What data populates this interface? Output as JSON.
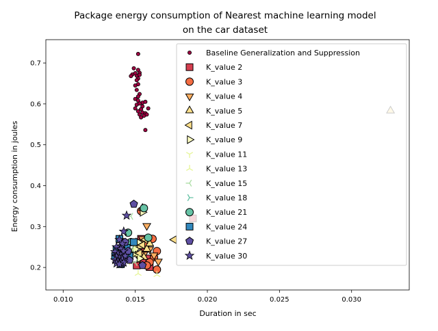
{
  "chart_data": {
    "type": "scatter",
    "title_lines": [
      "Package energy consumption of Nearest machine learning model",
      "on the car dataset"
    ],
    "xlabel": "Duration in sec",
    "ylabel": "Energy consumption in joules",
    "xlim": [
      0.0088,
      0.034
    ],
    "ylim": [
      0.145,
      0.757
    ],
    "xticks": [
      0.01,
      0.015,
      0.02,
      0.025,
      0.03
    ],
    "xtick_labels": [
      "0.010",
      "0.015",
      "0.020",
      "0.025",
      "0.030"
    ],
    "yticks": [
      0.2,
      0.3,
      0.4,
      0.5,
      0.6,
      0.7
    ],
    "ytick_labels": [
      "0.2",
      "0.3",
      "0.4",
      "0.5",
      "0.6",
      "0.7"
    ],
    "grid": false,
    "legend_position": "upper right",
    "series": [
      {
        "name": "Baseline Generalization and Suppression",
        "marker": "dot",
        "color": "#9e0142",
        "points": [
          [
            0.0152,
            0.722
          ],
          [
            0.0149,
            0.687
          ],
          [
            0.0152,
            0.683
          ],
          [
            0.0148,
            0.672
          ],
          [
            0.0153,
            0.676
          ],
          [
            0.0151,
            0.669
          ],
          [
            0.015,
            0.675
          ],
          [
            0.0147,
            0.668
          ],
          [
            0.0152,
            0.662
          ],
          [
            0.0153,
            0.671
          ],
          [
            0.0151,
            0.658
          ],
          [
            0.0152,
            0.648
          ],
          [
            0.015,
            0.645
          ],
          [
            0.0151,
            0.634
          ],
          [
            0.0153,
            0.624
          ],
          [
            0.0152,
            0.618
          ],
          [
            0.015,
            0.612
          ],
          [
            0.0152,
            0.608
          ],
          [
            0.0155,
            0.603
          ],
          [
            0.0157,
            0.605
          ],
          [
            0.0151,
            0.598
          ],
          [
            0.0153,
            0.601
          ],
          [
            0.0155,
            0.594
          ],
          [
            0.015,
            0.589
          ],
          [
            0.0154,
            0.587
          ],
          [
            0.0159,
            0.589
          ],
          [
            0.0152,
            0.582
          ],
          [
            0.0155,
            0.579
          ],
          [
            0.0157,
            0.577
          ],
          [
            0.0153,
            0.574
          ],
          [
            0.0156,
            0.571
          ],
          [
            0.0158,
            0.574
          ],
          [
            0.0154,
            0.567
          ],
          [
            0.0157,
            0.536
          ]
        ]
      },
      {
        "name": "K_value 2",
        "marker": "square",
        "color": "#d53e4f",
        "points": [
          [
            0.0154,
            0.27
          ],
          [
            0.0152,
            0.258
          ],
          [
            0.0156,
            0.245
          ],
          [
            0.0153,
            0.232
          ],
          [
            0.0158,
            0.222
          ],
          [
            0.0155,
            0.212
          ],
          [
            0.0151,
            0.205
          ],
          [
            0.016,
            0.201
          ],
          [
            0.019,
            0.32
          ]
        ]
      },
      {
        "name": "K_value 3",
        "marker": "circle",
        "color": "#f46d43",
        "points": [
          [
            0.0154,
            0.338
          ],
          [
            0.0163,
            0.225
          ],
          [
            0.0165,
            0.24
          ],
          [
            0.016,
            0.213
          ],
          [
            0.0158,
            0.205
          ],
          [
            0.0165,
            0.195
          ],
          [
            0.0155,
            0.265
          ],
          [
            0.0157,
            0.255
          ],
          [
            0.0162,
            0.27
          ]
        ]
      },
      {
        "name": "K_value 4",
        "marker": "triangle-down",
        "color": "#fdae61",
        "points": [
          [
            0.0158,
            0.302
          ],
          [
            0.0155,
            0.27
          ],
          [
            0.0152,
            0.258
          ],
          [
            0.016,
            0.245
          ],
          [
            0.0163,
            0.23
          ],
          [
            0.0166,
            0.215
          ],
          [
            0.0156,
            0.232
          ],
          [
            0.0153,
            0.222
          ]
        ]
      },
      {
        "name": "K_value 5",
        "marker": "triangle-up",
        "color": "#fee08b",
        "points": [
          [
            0.0155,
            0.345
          ],
          [
            0.0153,
            0.252
          ],
          [
            0.0158,
            0.245
          ],
          [
            0.016,
            0.258
          ],
          [
            0.015,
            0.232
          ],
          [
            0.0156,
            0.225
          ],
          [
            0.0327,
            0.583
          ]
        ]
      },
      {
        "name": "K_value 7",
        "marker": "triangle-left",
        "color": "#fee08b",
        "points": [
          [
            0.0177,
            0.268
          ],
          [
            0.0157,
            0.268
          ],
          [
            0.0155,
            0.255
          ],
          [
            0.015,
            0.245
          ],
          [
            0.0153,
            0.235
          ]
        ]
      },
      {
        "name": "K_value 9",
        "marker": "triangle-right",
        "color": "#ffffbf",
        "points": [
          [
            0.0155,
            0.335
          ],
          [
            0.0152,
            0.262
          ],
          [
            0.015,
            0.245
          ],
          [
            0.0148,
            0.232
          ],
          [
            0.0153,
            0.222
          ]
        ]
      },
      {
        "name": "K_value 11",
        "marker": "tri-down",
        "color": "#e6f598",
        "points": [
          [
            0.015,
            0.255
          ],
          [
            0.0148,
            0.242
          ],
          [
            0.0152,
            0.228
          ],
          [
            0.0146,
            0.215
          ]
        ]
      },
      {
        "name": "K_value 13",
        "marker": "tri-up",
        "color": "#e6f598",
        "points": [
          [
            0.0152,
            0.185
          ],
          [
            0.0165,
            0.182
          ],
          [
            0.0149,
            0.245
          ],
          [
            0.0147,
            0.232
          ]
        ]
      },
      {
        "name": "K_value 15",
        "marker": "tri-left",
        "color": "#abdda4",
        "points": [
          [
            0.0147,
            0.325
          ],
          [
            0.0145,
            0.258
          ],
          [
            0.0148,
            0.245
          ],
          [
            0.015,
            0.212
          ]
        ]
      },
      {
        "name": "K_value 18",
        "marker": "tri-right",
        "color": "#66c2a5",
        "points": [
          [
            0.0145,
            0.255
          ],
          [
            0.0143,
            0.24
          ],
          [
            0.0146,
            0.225
          ]
        ]
      },
      {
        "name": "K_value 21",
        "marker": "circle",
        "color": "#66c2a5",
        "points": [
          [
            0.0156,
            0.345
          ],
          [
            0.0145,
            0.285
          ],
          [
            0.0159,
            0.273
          ],
          [
            0.0147,
            0.262
          ],
          [
            0.0144,
            0.245
          ],
          [
            0.0146,
            0.232
          ]
        ]
      },
      {
        "name": "K_value 24",
        "marker": "square",
        "color": "#3288bd",
        "points": [
          [
            0.0139,
            0.27
          ],
          [
            0.0149,
            0.262
          ],
          [
            0.0137,
            0.242
          ],
          [
            0.0141,
            0.235
          ],
          [
            0.0136,
            0.228
          ],
          [
            0.0143,
            0.222
          ],
          [
            0.0138,
            0.215
          ],
          [
            0.014,
            0.208
          ],
          [
            0.0146,
            0.228
          ],
          [
            0.0144,
            0.248
          ]
        ]
      },
      {
        "name": "K_value 27",
        "marker": "pentagon",
        "color": "#5e4fa2",
        "points": [
          [
            0.0149,
            0.355
          ],
          [
            0.0155,
            0.205
          ],
          [
            0.0143,
            0.262
          ],
          [
            0.014,
            0.25
          ],
          [
            0.0145,
            0.24
          ],
          [
            0.0138,
            0.232
          ],
          [
            0.0142,
            0.222
          ],
          [
            0.0139,
            0.215
          ],
          [
            0.0141,
            0.21
          ],
          [
            0.0146,
            0.218
          ]
        ]
      },
      {
        "name": "K_value 30",
        "marker": "star",
        "color": "#5e4fa2",
        "points": [
          [
            0.0144,
            0.327
          ],
          [
            0.0142,
            0.288
          ],
          [
            0.0139,
            0.268
          ],
          [
            0.0141,
            0.258
          ],
          [
            0.0137,
            0.25
          ],
          [
            0.014,
            0.245
          ],
          [
            0.0142,
            0.24
          ],
          [
            0.0136,
            0.238
          ],
          [
            0.0138,
            0.233
          ],
          [
            0.014,
            0.23
          ],
          [
            0.0143,
            0.228
          ],
          [
            0.0137,
            0.226
          ],
          [
            0.0139,
            0.222
          ],
          [
            0.0141,
            0.22
          ],
          [
            0.0136,
            0.218
          ],
          [
            0.0138,
            0.215
          ],
          [
            0.014,
            0.213
          ],
          [
            0.0142,
            0.212
          ],
          [
            0.0137,
            0.21
          ],
          [
            0.0139,
            0.208
          ]
        ]
      }
    ]
  }
}
